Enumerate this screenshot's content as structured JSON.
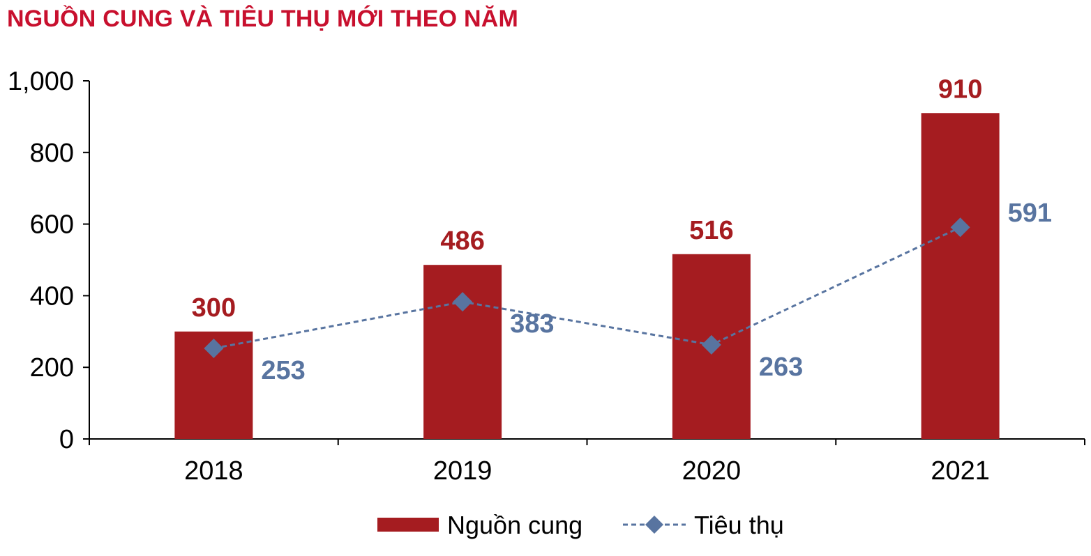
{
  "chart_data": {
    "type": "bar",
    "title": "NGUỒN CUNG VÀ TIÊU THỤ MỚI THEO NĂM",
    "categories": [
      "2018",
      "2019",
      "2020",
      "2021"
    ],
    "ylim": [
      0,
      1000
    ],
    "yticks": [
      0,
      200,
      400,
      600,
      800,
      1000
    ],
    "ytick_labels": [
      "0",
      "200",
      "400",
      "600",
      "800",
      "1,000"
    ],
    "grid": false,
    "legend_position": "bottom",
    "series": [
      {
        "name": "Nguồn cung",
        "type": "bar",
        "color": "#a51c20",
        "values": [
          300,
          486,
          516,
          910
        ],
        "labels": [
          "300",
          "486",
          "516",
          "910"
        ]
      },
      {
        "name": "Tiêu thụ",
        "type": "line",
        "style": "dashed",
        "marker": "diamond",
        "color": "#5874a0",
        "values": [
          253,
          383,
          263,
          591
        ],
        "labels": [
          "253",
          "383",
          "263",
          "591"
        ]
      }
    ]
  }
}
